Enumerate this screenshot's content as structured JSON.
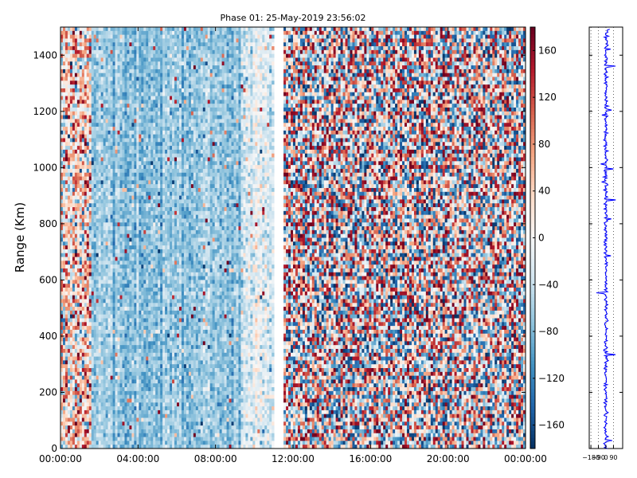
{
  "chart_data": [
    {
      "type": "heatmap",
      "title": "Phase 01: 25-May-2019 23:56:02",
      "xlabel": "",
      "ylabel": "Range (Km)",
      "x_ticks": [
        "00:00:00",
        "04:00:00",
        "08:00:00",
        "12:00:00",
        "16:00:00",
        "20:00:00",
        "00:00:00"
      ],
      "x_range_hours": [
        0,
        24
      ],
      "y_ticks": [
        0,
        200,
        400,
        600,
        800,
        1000,
        1200,
        1400
      ],
      "ylim": [
        0,
        1500
      ],
      "colorbar": {
        "ticks": [
          160,
          120,
          80,
          40,
          0,
          -40,
          -80,
          -120,
          -160
        ],
        "tick_labels": [
          "160",
          "120",
          "80",
          "40",
          "0",
          "−40",
          "−80",
          "−120",
          "−160"
        ],
        "range": [
          -180,
          180
        ],
        "colormap": "RdBu_r",
        "neg_color": "#053061",
        "mid_color": "#f7f7f7",
        "pos_color": "#67001f"
      },
      "regimes": [
        {
          "x_start_hours": 0.0,
          "x_end_hours": 1.6,
          "mean_phase": 30,
          "spread": 120,
          "note": "mixed, slightly positive"
        },
        {
          "x_start_hours": 1.6,
          "x_end_hours": 9.3,
          "mean_phase": -70,
          "spread": 35,
          "note": "coherent negative"
        },
        {
          "x_start_hours": 9.3,
          "x_end_hours": 11.0,
          "mean_phase": -30,
          "spread": 45,
          "note": "pale, weakly negative"
        },
        {
          "x_start_hours": 11.0,
          "x_end_hours": 11.5,
          "mean_phase": null,
          "spread": 0,
          "note": "no data"
        },
        {
          "x_start_hours": 11.5,
          "x_end_hours": 24.0,
          "mean_phase": 0,
          "spread": 180,
          "note": "random"
        }
      ]
    },
    {
      "type": "line",
      "title": "",
      "xlabel": "",
      "ylabel": "",
      "x_ticks": [
        -180,
        -90,
        0,
        90
      ],
      "x_tick_labels": [
        "−180",
        "−90",
        "0",
        "90"
      ],
      "xlim": [
        -200,
        200
      ],
      "ylim": [
        0,
        1500
      ],
      "color": "#0000ff",
      "series": [
        {
          "x_mean": 0,
          "x_jitter": 22,
          "spike_max": 120
        }
      ]
    }
  ]
}
